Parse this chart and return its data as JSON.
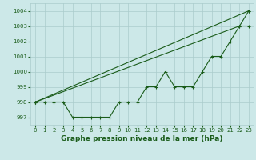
{
  "xlabel": "Graphe pression niveau de la mer (hPa)",
  "x": [
    0,
    1,
    2,
    3,
    4,
    5,
    6,
    7,
    8,
    9,
    10,
    11,
    12,
    13,
    14,
    15,
    16,
    17,
    18,
    19,
    20,
    21,
    22,
    23
  ],
  "line1": [
    998,
    998,
    998,
    998,
    997,
    997,
    997,
    997,
    997,
    998,
    998,
    998,
    999,
    999,
    1000,
    999,
    999,
    999,
    1000,
    1001,
    1001,
    1002,
    1003,
    1004
  ],
  "line2_x": [
    0,
    22,
    23
  ],
  "line2_y": [
    998,
    1003,
    1003
  ],
  "line3_x": [
    0,
    23
  ],
  "line3_y": [
    998,
    1004
  ],
  "bg_color": "#cce8e8",
  "grid_color": "#aacccc",
  "line_color": "#1a5c1a",
  "ylim_min": 996.5,
  "ylim_max": 1004.5,
  "xlim_min": -0.5,
  "xlim_max": 23.5,
  "yticks": [
    997,
    998,
    999,
    1000,
    1001,
    1002,
    1003,
    1004
  ],
  "xticks": [
    0,
    1,
    2,
    3,
    4,
    5,
    6,
    7,
    8,
    9,
    10,
    11,
    12,
    13,
    14,
    15,
    16,
    17,
    18,
    19,
    20,
    21,
    22,
    23
  ]
}
